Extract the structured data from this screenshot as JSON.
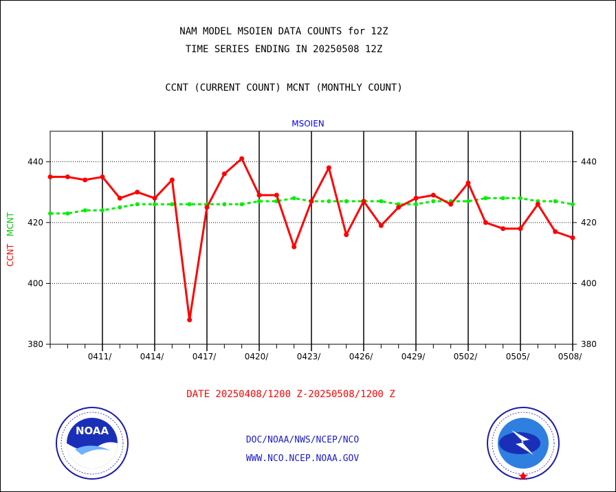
{
  "header": {
    "title_line1": "NAM MODEL MSOIEN DATA COUNTS for 12Z",
    "title_line2": "TIME SERIES ENDING IN 20250508 12Z",
    "subtitle": "CCNT (CURRENT COUNT) MCNT (MONTHLY COUNT)"
  },
  "chart_data": {
    "type": "line",
    "title": "MSOIEN",
    "ylabel_ccnt": "CCNT",
    "ylabel_mcnt": "MCNT",
    "ylim": [
      380,
      450
    ],
    "yticks": [
      380,
      400,
      420,
      440
    ],
    "x_day_start": 0,
    "x_day_end": 30,
    "x_tick_labels": [
      {
        "label": "0411/",
        "day": 3
      },
      {
        "label": "0414/",
        "day": 6
      },
      {
        "label": "0417/",
        "day": 9
      },
      {
        "label": "0420/",
        "day": 12
      },
      {
        "label": "0423/",
        "day": 15
      },
      {
        "label": "0426/",
        "day": 18
      },
      {
        "label": "0429/",
        "day": 21
      },
      {
        "label": "0502/",
        "day": 24
      },
      {
        "label": "0505/",
        "day": 27
      },
      {
        "label": "0508/",
        "day": 30
      }
    ],
    "grid": true,
    "colors": {
      "ccnt": "#ff0000",
      "mcnt": "#00ee00",
      "title": "#0000ff",
      "axis": "#000000"
    },
    "series": [
      {
        "name": "CCNT",
        "values": [
          435,
          435,
          434,
          435,
          428,
          430,
          428,
          434,
          388,
          425,
          436,
          441,
          429,
          429,
          412,
          427,
          438,
          416,
          427,
          419,
          425,
          428,
          429,
          426,
          433,
          420,
          418,
          418,
          426,
          417,
          415
        ]
      },
      {
        "name": "MCNT",
        "values": [
          423,
          423,
          424,
          424,
          425,
          426,
          426,
          426,
          426,
          426,
          426,
          426,
          427,
          427,
          428,
          427,
          427,
          427,
          427,
          427,
          426,
          426,
          427,
          427,
          427,
          428,
          428,
          428,
          427,
          427,
          426
        ]
      }
    ]
  },
  "footer": {
    "date_range": "DATE 20250408/1200 Z-20250508/1200 Z",
    "org_path": "DOC/NOAA/NWS/NCEP/NCO",
    "website": "WWW.NCO.NCEP.NOAA.GOV"
  },
  "logos": {
    "noaa_center": "NOAA",
    "noaa_ring": "NATIONAL OCEANIC AND ATMOSPHERIC ADMINISTRATION · U.S. DEPARTMENT OF COMMERCE",
    "nws_ring": "NATIONAL WEATHER SERVICE"
  }
}
